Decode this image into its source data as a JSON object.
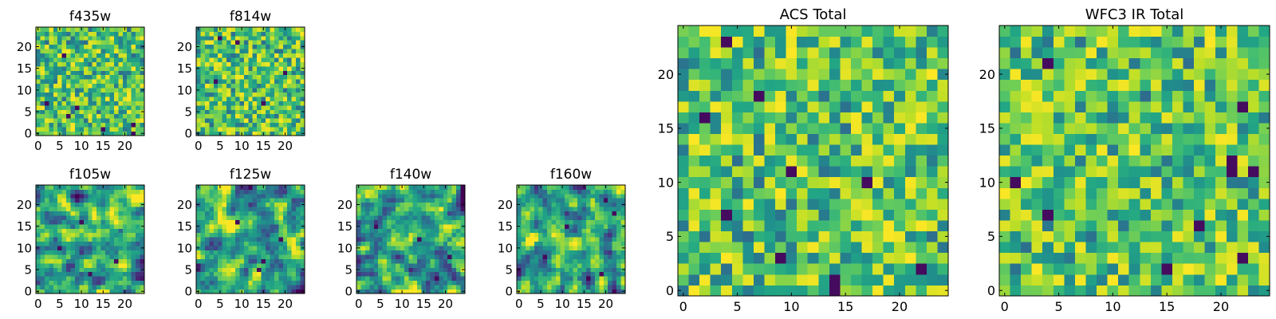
{
  "chart_data": [
    {
      "type": "heatmap",
      "title": "f435w",
      "grid_size": [
        25,
        25
      ],
      "colormap": "viridis",
      "x_range": [
        0,
        24
      ],
      "y_range": [
        0,
        24
      ],
      "x_ticks": [
        "0",
        "5",
        "10",
        "15",
        "20"
      ],
      "y_ticks": [
        "0",
        "5",
        "10",
        "15",
        "20"
      ],
      "noise_style": "pixel",
      "seed": 11,
      "notable_dark_cells": [
        [
          6,
          18
        ],
        [
          7,
          4
        ],
        [
          15,
          1
        ],
        [
          22,
          0
        ],
        [
          22,
          2
        ],
        [
          2,
          7
        ],
        [
          9,
          6
        ]
      ]
    },
    {
      "type": "heatmap",
      "title": "f814w",
      "grid_size": [
        25,
        25
      ],
      "colormap": "viridis",
      "x_range": [
        0,
        24
      ],
      "y_range": [
        0,
        24
      ],
      "x_ticks": [
        "0",
        "5",
        "10",
        "15",
        "20"
      ],
      "y_ticks": [
        "0",
        "5",
        "10",
        "15",
        "20"
      ],
      "noise_style": "pixel",
      "seed": 23,
      "notable_dark_cells": [
        [
          5,
          22
        ],
        [
          9,
          21
        ],
        [
          4,
          12
        ],
        [
          20,
          14
        ],
        [
          15,
          7
        ]
      ]
    },
    {
      "type": "heatmap",
      "title": "f105w",
      "grid_size": [
        25,
        25
      ],
      "colormap": "viridis",
      "x_range": [
        0,
        24
      ],
      "y_range": [
        0,
        24
      ],
      "x_ticks": [
        "0",
        "5",
        "10",
        "15",
        "20"
      ],
      "y_ticks": [
        "0",
        "5",
        "10",
        "15",
        "20"
      ],
      "noise_style": "smooth",
      "seed": 37,
      "notable_dark_cells": [
        [
          10,
          16
        ],
        [
          18,
          7
        ],
        [
          12,
          4
        ],
        [
          5,
          10
        ]
      ]
    },
    {
      "type": "heatmap",
      "title": "f125w",
      "grid_size": [
        25,
        25
      ],
      "colormap": "viridis",
      "x_range": [
        0,
        24
      ],
      "y_range": [
        0,
        24
      ],
      "x_ticks": [
        "0",
        "5",
        "10",
        "15",
        "20"
      ],
      "y_ticks": [
        "0",
        "5",
        "10",
        "15",
        "20"
      ],
      "noise_style": "smooth",
      "seed": 41,
      "notable_dark_cells": [
        [
          14,
          5
        ],
        [
          19,
          12
        ],
        [
          9,
          16
        ],
        [
          15,
          7
        ]
      ]
    },
    {
      "type": "heatmap",
      "title": "f140w",
      "grid_size": [
        25,
        25
      ],
      "colormap": "viridis",
      "x_range": [
        0,
        24
      ],
      "y_range": [
        0,
        24
      ],
      "x_ticks": [
        "0",
        "5",
        "10",
        "15",
        "20"
      ],
      "y_ticks": [
        "0",
        "5",
        "10",
        "15",
        "20"
      ],
      "noise_style": "smooth",
      "seed": 53,
      "notable_dark_cells": [
        [
          18,
          3
        ],
        [
          21,
          8
        ],
        [
          14,
          12
        ],
        [
          4,
          15
        ]
      ]
    },
    {
      "type": "heatmap",
      "title": "f160w",
      "grid_size": [
        25,
        25
      ],
      "colormap": "viridis",
      "x_range": [
        0,
        24
      ],
      "y_range": [
        0,
        24
      ],
      "x_ticks": [
        "0",
        "5",
        "10",
        "15",
        "20"
      ],
      "y_ticks": [
        "0",
        "5",
        "10",
        "15",
        "20"
      ],
      "noise_style": "smooth",
      "seed": 67,
      "notable_dark_cells": [
        [
          19,
          4
        ],
        [
          11,
          15
        ],
        [
          20,
          21
        ],
        [
          6,
          8
        ],
        [
          22,
          18
        ]
      ]
    },
    {
      "type": "heatmap",
      "title": "ACS Total",
      "grid_size": [
        25,
        25
      ],
      "colormap": "viridis",
      "x_range": [
        0,
        24
      ],
      "y_range": [
        0,
        24
      ],
      "x_ticks": [
        "0",
        "5",
        "10",
        "15",
        "20"
      ],
      "y_ticks": [
        "0",
        "5",
        "10",
        "15",
        "20"
      ],
      "noise_style": "pixel",
      "seed": 79,
      "notable_dark_cells": [
        [
          4,
          23
        ],
        [
          2,
          16
        ],
        [
          7,
          18
        ],
        [
          10,
          11
        ],
        [
          17,
          10
        ],
        [
          4,
          7
        ],
        [
          9,
          3
        ],
        [
          14,
          0
        ],
        [
          14,
          1
        ],
        [
          22,
          2
        ]
      ]
    },
    {
      "type": "heatmap",
      "title": "WFC3 IR Total",
      "grid_size": [
        25,
        25
      ],
      "colormap": "viridis",
      "x_range": [
        0,
        24
      ],
      "y_range": [
        0,
        24
      ],
      "x_ticks": [
        "0",
        "5",
        "10",
        "15",
        "20"
      ],
      "y_ticks": [
        "0",
        "5",
        "10",
        "15",
        "20"
      ],
      "noise_style": "pixel",
      "seed": 83,
      "notable_dark_cells": [
        [
          4,
          21
        ],
        [
          22,
          17
        ],
        [
          21,
          12
        ],
        [
          1,
          10
        ],
        [
          21,
          11
        ],
        [
          23,
          11
        ],
        [
          4,
          7
        ],
        [
          18,
          6
        ],
        [
          22,
          3
        ],
        [
          15,
          2
        ]
      ]
    }
  ]
}
